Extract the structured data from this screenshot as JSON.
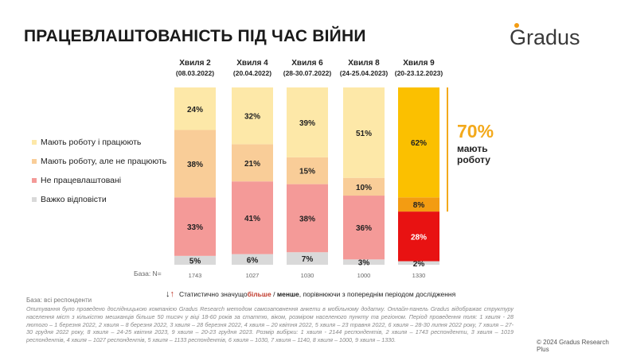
{
  "title": "ПРАЦЕВЛАШТОВАНІСТЬ ПІД ЧАС ВІЙНИ",
  "logo": "Gradus",
  "legend": [
    {
      "label": "Мають роботу і працюють",
      "color": "#fde8a8"
    },
    {
      "label": "Мають роботу, але не працюють",
      "color": "#f9cd98"
    },
    {
      "label": "Не працевлаштовані",
      "color": "#f49a98"
    },
    {
      "label": "Важко відповісти",
      "color": "#d9d9d9"
    }
  ],
  "highlight": {
    "percent": "70%",
    "text_line1": "мають",
    "text_line2": "роботу",
    "bracket_color": "#f3a91b"
  },
  "base_label": "База: N=",
  "stat_note": {
    "before": "Статистично значущо ",
    "bold_more": "більше",
    "slash": " / ",
    "bold_less": "менше",
    "after": ", порівнюючи з попереднім періодом дослідження"
  },
  "base_resp": "База: всі респонденти",
  "footnote": "Опитування було проведено дослідницькою компанією Gradus Research методом самозаповнення анкети в мобільному додатку. Онлайн-панель Gradus відображає структуру населення міст з кількістю мешканців більше 50 тисяч у віці 18-60 років за статтю, віком, розміром населеного пункту та регіоном. Період проведення поля: 1 хвиля - 28 лютого – 1 березня 2022, 2 хвиля – 8 березня 2022, 3 хвиля – 28 березня 2022, 4 хвиля – 20 квітня 2022, 5 хвиля – 23 травня 2022, 6 хвиля – 28-30 липня 2022 року, 7 хвиля – 27-30 грудня 2022 року, 8 хвиля – 24-25 квітня 2023, 9 хвиля – 20-23 грудня 2023. Розмір вибірки: 1 хвиля - 2144 респондентів, 2 хвиля – 1743 респонденти, 3 хвиля – 1019 респондентів, 4 хвиля – 1027 респондентів, 5 хвиля – 1133 респондентів, 6 хвиля – 1030, 7 хвиля – 1140, 8 хвиля – 1000, 9 хвиля – 1330.",
  "copyright": "© 2024 Gradus Research Plus",
  "chart_data": {
    "type": "bar",
    "stacked": true,
    "categories": [
      "Хвиля 2",
      "Хвиля 4",
      "Хвиля 6",
      "Хвиля 8",
      "Хвиля 9"
    ],
    "dates": [
      "(08.03.2022)",
      "(20.04.2022)",
      "(28-30.07.2022)",
      "(24-25.04.2023)",
      "(20-23.12.2023)"
    ],
    "bases": [
      "1743",
      "1027",
      "1030",
      "1000",
      "1330"
    ],
    "series": [
      {
        "name": "Важко відповісти",
        "values": [
          5,
          6,
          7,
          3,
          2
        ],
        "labels": [
          "5%",
          "6%",
          "7%",
          "3%",
          "2%"
        ]
      },
      {
        "name": "Не працевлаштовані",
        "values": [
          33,
          41,
          38,
          36,
          28
        ],
        "labels": [
          "33%",
          "41%",
          "38%",
          "36%",
          "28%"
        ]
      },
      {
        "name": "Мають роботу, але не працюють",
        "values": [
          38,
          21,
          15,
          10,
          8
        ],
        "labels": [
          "38%",
          "21%",
          "15%",
          "10%",
          "8%"
        ]
      },
      {
        "name": "Мають роботу і працюють",
        "values": [
          24,
          32,
          39,
          51,
          62
        ],
        "labels": [
          "24%",
          "32%",
          "39%",
          "51%",
          "62%"
        ]
      }
    ],
    "colors": {
      "Важко відповісти": "#d9d9d9",
      "Не працевлаштовані": "#f49a98",
      "Мають роботу, але не працюють": "#f9cd98",
      "Мають роботу і працюють": "#fde8a8"
    },
    "highlight_colors": {
      "Важко відповісти": "#d9d9d9",
      "Не працевлаштовані": "#e81212",
      "Мають роботу, але не працюють": "#f39c12",
      "Мають роботу і працюють": "#fbc000"
    },
    "highlight_label_colors": {
      "Не працевлаштовані": "#ffffff"
    },
    "highlight_index": 4,
    "ylim": [
      0,
      100
    ]
  }
}
